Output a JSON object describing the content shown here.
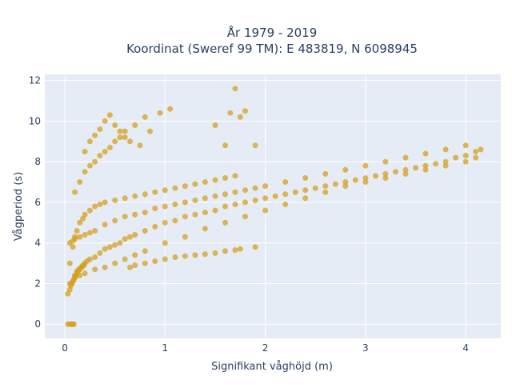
{
  "chart_data": {
    "type": "scatter",
    "title": "År 1979 - 2019",
    "subtitle": "Koordinat (Sweref 99 TM): E 483819, N 6098945",
    "xlabel": "Signifikant våghöjd (m)",
    "ylabel": "Vågperiod (s)",
    "xlim": [
      -0.2,
      4.35
    ],
    "ylim": [
      -0.7,
      12.3
    ],
    "xticks": [
      0,
      1,
      2,
      3,
      4
    ],
    "yticks": [
      0,
      2,
      4,
      6,
      8,
      10,
      12
    ],
    "grid": true,
    "legend": "none",
    "marker_color": "#d4a020",
    "plot_background": "#e5ecf6",
    "series": [
      {
        "x": [
          0.03,
          0.05,
          0.06,
          0.07,
          0.08,
          0.09,
          0.1,
          0.1,
          0.11,
          0.12,
          0.12,
          0.13,
          0.14,
          0.15,
          0.16,
          0.17,
          0.18,
          0.19,
          0.2,
          0.22,
          0.25,
          0.3,
          0.35,
          0.4,
          0.45,
          0.5,
          0.55,
          0.6,
          0.65,
          0.7,
          0.8,
          0.9,
          1.0,
          1.1,
          1.2,
          1.3,
          1.4,
          1.5,
          1.6,
          1.7,
          1.8,
          1.9,
          2.0,
          2.1,
          2.2,
          2.3,
          2.4,
          2.5,
          2.6,
          2.7,
          2.8,
          2.9,
          3.0,
          3.1,
          3.2,
          3.3,
          3.4,
          3.5,
          3.6,
          3.7,
          3.8,
          3.9,
          4.0,
          4.1,
          4.15,
          0.05,
          0.08,
          0.1,
          0.12,
          0.15,
          0.18,
          0.2,
          0.25,
          0.3,
          0.35,
          0.4,
          0.5,
          0.6,
          0.7,
          0.8,
          0.9,
          1.0,
          1.1,
          1.2,
          1.3,
          1.4,
          1.5,
          1.6,
          1.7,
          0.05,
          0.08,
          0.1,
          0.15,
          0.2,
          0.25,
          0.3,
          0.4,
          0.5,
          0.6,
          0.7,
          0.8,
          0.9,
          1.0,
          1.1,
          1.2,
          1.3,
          1.4,
          1.5,
          1.6,
          1.7,
          1.8,
          1.9,
          2.0,
          2.2,
          2.4,
          2.6,
          2.8,
          3.0,
          3.2,
          3.4,
          3.6,
          3.8,
          4.0,
          0.05,
          0.08,
          0.1,
          0.15,
          0.2,
          0.3,
          0.4,
          0.5,
          0.6,
          0.7,
          0.8,
          1.0,
          1.2,
          1.4,
          1.6,
          1.8,
          2.0,
          2.2,
          2.4,
          2.6,
          2.8,
          3.0,
          3.2,
          3.4,
          3.6,
          3.8,
          4.0,
          4.1,
          0.1,
          0.15,
          0.2,
          0.25,
          0.3,
          0.35,
          0.4,
          0.45,
          0.5,
          0.55,
          0.6,
          0.7,
          0.8,
          0.2,
          0.25,
          0.3,
          0.35,
          0.4,
          0.45,
          0.5,
          0.55,
          0.6,
          0.65,
          0.75,
          0.85,
          0.95,
          1.05,
          1.5,
          1.6,
          1.65,
          1.7,
          1.75,
          1.8,
          1.9,
          0.65,
          0.7,
          0.8,
          0.9,
          1.0,
          1.1,
          1.2,
          1.3,
          1.4,
          1.5,
          1.6,
          1.7,
          1.75,
          1.9,
          0.03,
          0.05,
          0.07,
          0.08,
          0.09
        ],
        "y": [
          1.5,
          1.7,
          1.9,
          2.0,
          2.1,
          2.2,
          2.3,
          2.4,
          2.4,
          2.5,
          2.6,
          2.6,
          2.7,
          2.7,
          2.8,
          2.8,
          2.9,
          2.9,
          3.0,
          3.1,
          3.2,
          3.3,
          3.5,
          3.7,
          3.8,
          3.9,
          4.0,
          4.2,
          4.3,
          4.4,
          4.6,
          4.8,
          5.0,
          5.1,
          5.3,
          5.4,
          5.5,
          5.6,
          5.8,
          5.9,
          6.0,
          6.1,
          6.2,
          6.3,
          6.4,
          6.5,
          6.6,
          6.7,
          6.8,
          6.9,
          7.0,
          7.1,
          7.2,
          7.3,
          7.4,
          7.5,
          7.6,
          7.7,
          7.8,
          7.9,
          8.0,
          8.2,
          8.3,
          8.5,
          8.6,
          3.0,
          3.8,
          4.3,
          4.6,
          5.0,
          5.2,
          5.4,
          5.6,
          5.8,
          5.9,
          6.0,
          6.1,
          6.2,
          6.3,
          6.4,
          6.5,
          6.6,
          6.7,
          6.8,
          6.9,
          7.0,
          7.1,
          7.2,
          7.3,
          4.0,
          4.1,
          4.2,
          4.3,
          4.4,
          4.5,
          4.6,
          4.9,
          5.1,
          5.3,
          5.4,
          5.5,
          5.7,
          5.8,
          5.9,
          6.0,
          6.1,
          6.2,
          6.3,
          6.4,
          6.5,
          6.6,
          6.7,
          6.8,
          7.0,
          7.2,
          7.4,
          7.6,
          7.8,
          8.0,
          8.2,
          8.4,
          8.6,
          8.8,
          2.0,
          2.1,
          2.3,
          2.4,
          2.5,
          2.7,
          2.8,
          3.0,
          3.2,
          3.4,
          3.6,
          4.0,
          4.3,
          4.7,
          5.0,
          5.3,
          5.6,
          5.9,
          6.2,
          6.5,
          6.8,
          7.0,
          7.2,
          7.4,
          7.6,
          7.8,
          8.0,
          8.2,
          6.5,
          7.0,
          7.5,
          7.8,
          8.0,
          8.3,
          8.5,
          8.7,
          9.0,
          9.2,
          9.5,
          9.8,
          10.2,
          8.5,
          9.0,
          9.3,
          9.6,
          10.0,
          10.3,
          9.8,
          9.5,
          9.2,
          9.0,
          8.8,
          9.5,
          10.4,
          10.6,
          9.8,
          8.8,
          10.4,
          11.6,
          10.2,
          10.5,
          8.8,
          2.8,
          2.9,
          3.0,
          3.1,
          3.2,
          3.3,
          3.35,
          3.4,
          3.45,
          3.5,
          3.6,
          3.65,
          3.7,
          3.8,
          0.0,
          0.0,
          0.0,
          0.0,
          0.0
        ]
      }
    ]
  }
}
